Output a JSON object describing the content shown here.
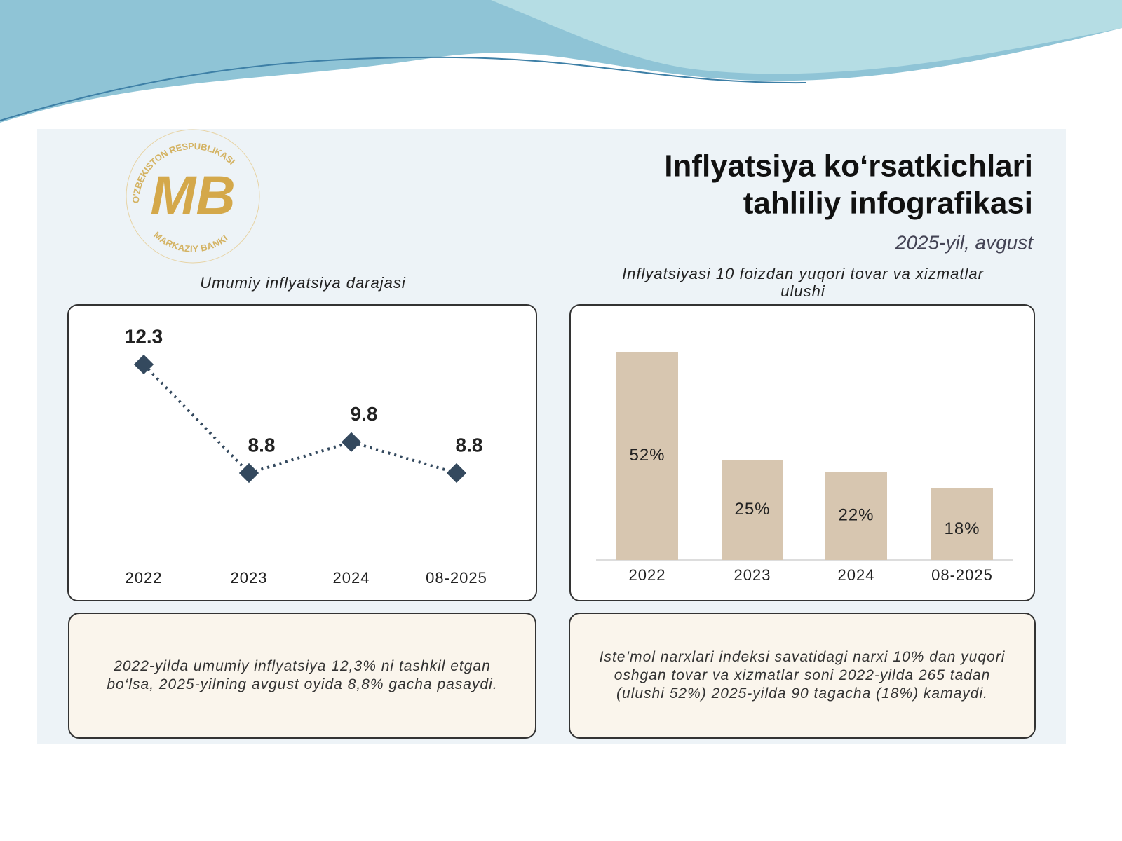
{
  "logo": {
    "mark": "MB",
    "top": "O'ZBEKISTON RESPUBLIKASI",
    "bottom": "MARKAZIY BANKI"
  },
  "header": {
    "title_lines": [
      "Inflyatsiya ko‘rsatkichlari",
      "tahliliy infografikasi"
    ],
    "date": "2025-yil, avgust"
  },
  "chart_data": [
    {
      "type": "line",
      "title": "Umumiy inflyatsiya darajasi",
      "categories": [
        "2022",
        "2023",
        "2024",
        "08-2025"
      ],
      "values": [
        12.3,
        8.8,
        9.8,
        8.8
      ],
      "color": "#34495e"
    },
    {
      "type": "bar",
      "title": "Inflyatsiyasi 10 foizdan yuqori tovar va xizmatlar ulushi",
      "categories": [
        "2022",
        "2023",
        "2024",
        "08-2025"
      ],
      "values": [
        52,
        25,
        22,
        18
      ],
      "value_labels": [
        "52%",
        "25%",
        "22%",
        "18%"
      ],
      "color": "#d7c6b0"
    }
  ],
  "notes": [
    "2022-yilda umumiy inflyatsiya 12,3% ni tashkil etgan bo‘lsa, 2025-yilning avgust oyida 8,8% gacha pasaydi.",
    "Iste’mol narxlari indeksi savatidagi narxi 10% dan yuqori oshgan tovar va xizmatlar soni 2022-yilda 265 tadan (ulushi 52%) 2025-yilda 90 tagacha (18%) kamaydi."
  ]
}
